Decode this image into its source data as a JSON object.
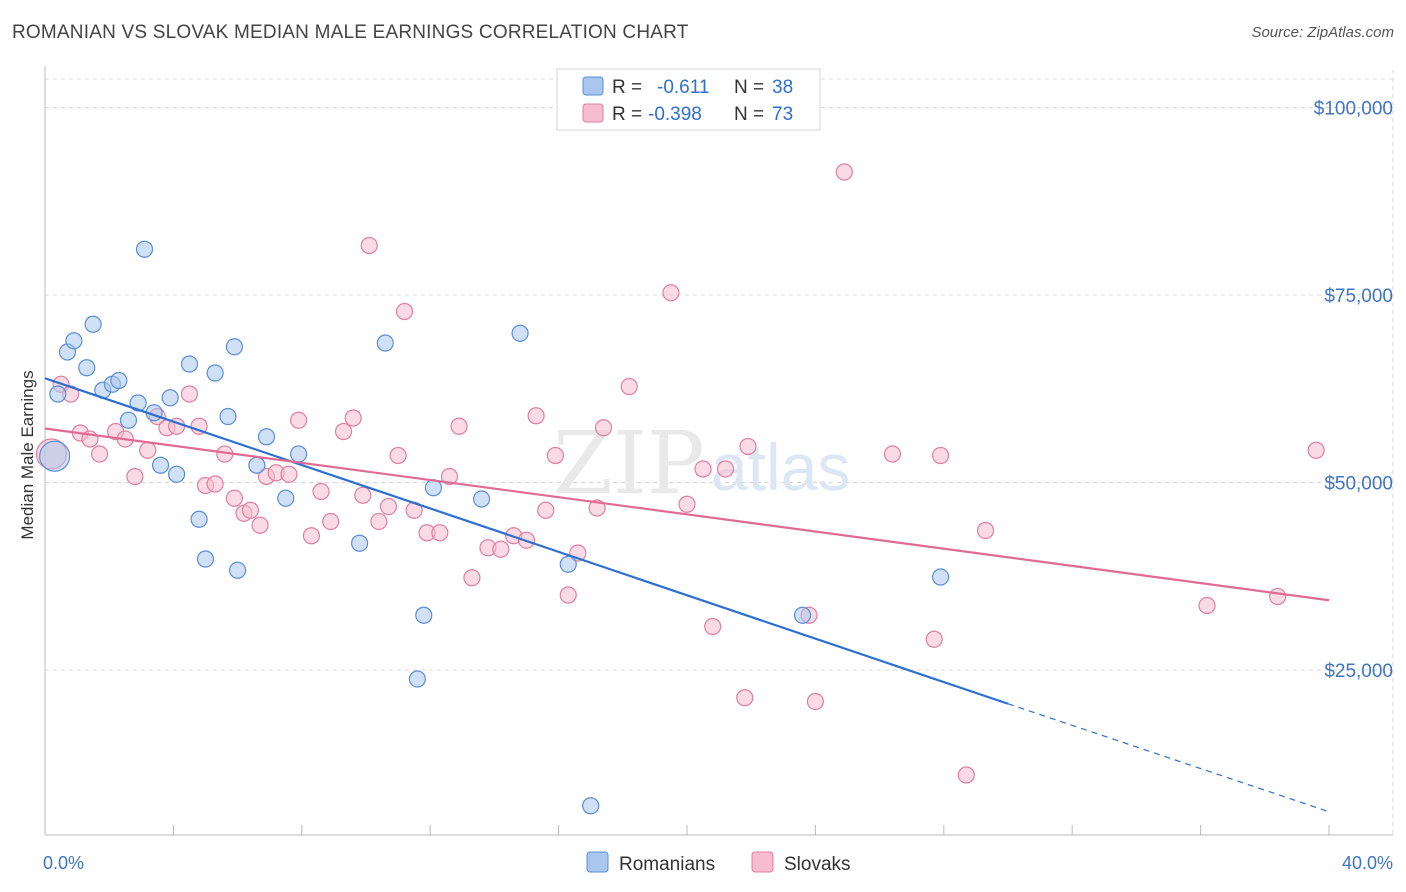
{
  "header": {
    "title": "ROMANIAN VS SLOVAK MEDIAN MALE EARNINGS CORRELATION CHART",
    "source": "Source: ZipAtlas.com"
  },
  "watermark": {
    "part1": "ZIP",
    "part2": "atlas"
  },
  "legend_top": {
    "rows": [
      {
        "r_label": "R =",
        "r_value": "-0.611",
        "n_label": "N =",
        "n_value": "38"
      },
      {
        "r_label": "R =",
        "r_value": "-0.398",
        "n_label": "N =",
        "n_value": "73"
      }
    ]
  },
  "legend_bottom": {
    "items": [
      "Romanians",
      "Slovaks"
    ]
  },
  "colors": {
    "blue_fill": "#a9c6ef",
    "blue_stroke": "#5b8fd6",
    "blue_line": "#2d6fd3",
    "pink_fill": "#f6bdd0",
    "pink_stroke": "#e07fa2",
    "pink_line": "#e06a92",
    "tick_text": "#3d74c6",
    "grid": "#d8d8d8"
  },
  "chart_data": {
    "type": "scatter",
    "title": "ROMANIAN VS SLOVAK MEDIAN MALE EARNINGS CORRELATION CHART",
    "xlabel": "",
    "ylabel": "Median Male Earnings",
    "xlim": [
      0,
      40
    ],
    "ylim": [
      3000,
      105000
    ],
    "x_tick_labels": [
      "0.0%",
      "40.0%"
    ],
    "y_ticks": [
      25000,
      50000,
      75000,
      100000
    ],
    "y_tick_labels": [
      "$25,000",
      "$50,000",
      "$75,000",
      "$100,000"
    ],
    "grid": true,
    "legend_position": "top-center",
    "series": [
      {
        "name": "Romanians",
        "r": -0.611,
        "n": 38,
        "trend": {
          "x0": 0,
          "y0": 63900,
          "x1": 30,
          "y1": 20500,
          "dashed_to_x": 40,
          "dashed_to_y": 6100
        },
        "points": [
          [
            0.3,
            53500
          ],
          [
            0.4,
            61800
          ],
          [
            0.7,
            67400
          ],
          [
            0.9,
            68900
          ],
          [
            1.3,
            65300
          ],
          [
            1.5,
            71100
          ],
          [
            1.8,
            62300
          ],
          [
            2.1,
            63100
          ],
          [
            2.3,
            63600
          ],
          [
            2.6,
            58300
          ],
          [
            2.9,
            60600
          ],
          [
            3.1,
            81100
          ],
          [
            3.4,
            59300
          ],
          [
            3.6,
            52300
          ],
          [
            3.9,
            61300
          ],
          [
            4.1,
            51100
          ],
          [
            4.5,
            65800
          ],
          [
            4.8,
            45100
          ],
          [
            5.0,
            39800
          ],
          [
            5.3,
            64600
          ],
          [
            5.7,
            58800
          ],
          [
            5.9,
            68100
          ],
          [
            6.0,
            38300
          ],
          [
            6.6,
            52300
          ],
          [
            6.9,
            56100
          ],
          [
            7.5,
            47900
          ],
          [
            7.9,
            53800
          ],
          [
            9.8,
            41900
          ],
          [
            10.6,
            68600
          ],
          [
            11.6,
            23800
          ],
          [
            11.8,
            32300
          ],
          [
            12.1,
            49300
          ],
          [
            13.6,
            47800
          ],
          [
            14.8,
            69900
          ],
          [
            16.3,
            39100
          ],
          [
            17.0,
            6900
          ],
          [
            23.6,
            32300
          ],
          [
            27.9,
            37400
          ]
        ]
      },
      {
        "name": "Slovaks",
        "r": -0.398,
        "n": 73,
        "trend": {
          "x0": 0,
          "y0": 57200,
          "x1": 40,
          "y1": 34300
        },
        "points": [
          [
            0.2,
            53800
          ],
          [
            0.5,
            63100
          ],
          [
            0.8,
            61800
          ],
          [
            1.1,
            56600
          ],
          [
            1.4,
            55800
          ],
          [
            1.7,
            53800
          ],
          [
            2.2,
            56800
          ],
          [
            2.5,
            55800
          ],
          [
            2.8,
            50800
          ],
          [
            3.2,
            54300
          ],
          [
            3.5,
            58800
          ],
          [
            3.8,
            57300
          ],
          [
            4.1,
            57500
          ],
          [
            4.5,
            61800
          ],
          [
            4.8,
            57500
          ],
          [
            5.0,
            49600
          ],
          [
            5.3,
            49800
          ],
          [
            5.6,
            53800
          ],
          [
            5.9,
            47900
          ],
          [
            6.2,
            45900
          ],
          [
            6.4,
            46300
          ],
          [
            6.7,
            44300
          ],
          [
            6.9,
            50800
          ],
          [
            7.2,
            51300
          ],
          [
            7.6,
            51100
          ],
          [
            7.9,
            58300
          ],
          [
            8.3,
            42900
          ],
          [
            8.6,
            48800
          ],
          [
            8.9,
            44800
          ],
          [
            9.3,
            56800
          ],
          [
            9.6,
            58600
          ],
          [
            9.9,
            48300
          ],
          [
            10.1,
            81600
          ],
          [
            10.4,
            44800
          ],
          [
            10.7,
            46800
          ],
          [
            11.0,
            53600
          ],
          [
            11.2,
            72800
          ],
          [
            11.5,
            46300
          ],
          [
            11.9,
            43300
          ],
          [
            12.3,
            43300
          ],
          [
            12.6,
            50800
          ],
          [
            12.9,
            57500
          ],
          [
            13.3,
            37300
          ],
          [
            13.8,
            41300
          ],
          [
            14.2,
            41100
          ],
          [
            14.6,
            42900
          ],
          [
            15.0,
            42300
          ],
          [
            15.3,
            58900
          ],
          [
            15.6,
            46300
          ],
          [
            15.9,
            53600
          ],
          [
            16.3,
            35000
          ],
          [
            16.6,
            40600
          ],
          [
            17.2,
            46600
          ],
          [
            17.4,
            57300
          ],
          [
            18.2,
            62800
          ],
          [
            19.5,
            75300
          ],
          [
            20.0,
            47100
          ],
          [
            20.5,
            51800
          ],
          [
            20.8,
            30800
          ],
          [
            21.2,
            51800
          ],
          [
            21.8,
            21300
          ],
          [
            21.9,
            54800
          ],
          [
            23.8,
            32300
          ],
          [
            24.0,
            20800
          ],
          [
            24.9,
            91400
          ],
          [
            26.4,
            53800
          ],
          [
            27.7,
            29100
          ],
          [
            27.9,
            53600
          ],
          [
            28.7,
            11000
          ],
          [
            29.3,
            43600
          ],
          [
            36.2,
            33600
          ],
          [
            38.4,
            34800
          ],
          [
            39.6,
            54300
          ]
        ]
      }
    ]
  }
}
